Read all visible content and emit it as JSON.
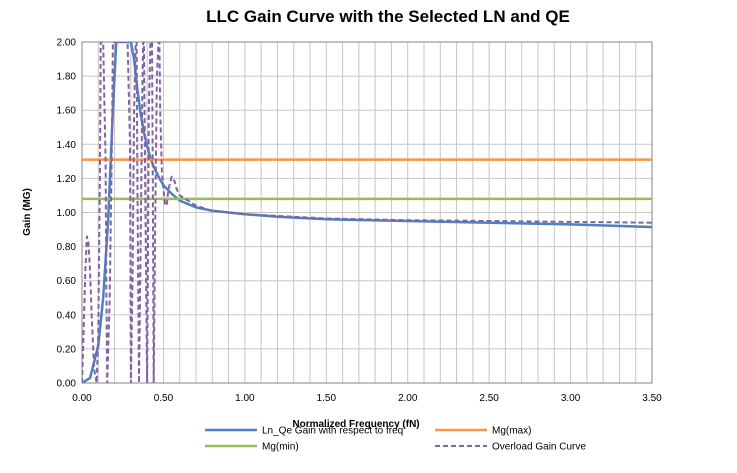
{
  "chart_data": {
    "type": "line",
    "title": "LLC Gain Curve with the Selected LN and QE",
    "xlabel": "Normalized Frequency (fN)",
    "ylabel": "Gain (MG)",
    "xlim": [
      0,
      3.5
    ],
    "ylim": [
      0,
      2
    ],
    "grid": true,
    "legend_position": "bottom",
    "x_ticks": [
      "0.00",
      "0.50",
      "1.00",
      "1.50",
      "2.00",
      "2.50",
      "3.00",
      "3.50"
    ],
    "y_ticks": [
      "0.00",
      "0.20",
      "0.40",
      "0.60",
      "0.80",
      "1.00",
      "1.20",
      "1.40",
      "1.60",
      "1.80",
      "2.00"
    ],
    "series": [
      {
        "name": "Ln_Qe Gain with respect to freq",
        "color": "#4f81bd",
        "style": "solid",
        "x": [
          0.0,
          0.05,
          0.1,
          0.13,
          0.16,
          0.19,
          0.21,
          0.22,
          0.25,
          0.29,
          0.3,
          0.32,
          0.34,
          0.36,
          0.38,
          0.4,
          0.42,
          0.44,
          0.47,
          0.5,
          0.55,
          0.6,
          0.7,
          0.8,
          1.0,
          1.2,
          1.5,
          2.0,
          2.5,
          3.0,
          3.5
        ],
        "y": [
          0.0,
          0.03,
          0.22,
          0.5,
          0.95,
          1.6,
          2.0,
          2.0,
          2.0,
          2.0,
          2.0,
          1.9,
          1.72,
          1.58,
          1.47,
          1.39,
          1.32,
          1.27,
          1.21,
          1.16,
          1.11,
          1.07,
          1.03,
          1.01,
          0.99,
          0.975,
          0.96,
          0.95,
          0.94,
          0.93,
          0.915
        ]
      },
      {
        "name": "Mg(max)",
        "color": "#f79646",
        "style": "solid",
        "x": [
          0,
          3.5
        ],
        "y": [
          1.31,
          1.31
        ]
      },
      {
        "name": "Mg(min)",
        "color": "#9bbb59",
        "style": "solid",
        "x": [
          0,
          3.5
        ],
        "y": [
          1.08,
          1.08
        ]
      },
      {
        "name": "Overload Gain Curve",
        "color": "#8064a2",
        "style": "dashed",
        "x": [
          0.0,
          0.01,
          0.02,
          0.03,
          0.04,
          0.05,
          0.06,
          0.075,
          0.09,
          0.1,
          0.11,
          0.115,
          0.13,
          0.145,
          0.15,
          0.155,
          0.17,
          0.185,
          0.19,
          0.2,
          0.23,
          0.28,
          0.295,
          0.3,
          0.31,
          0.32,
          0.33,
          0.335,
          0.34,
          0.35,
          0.36,
          0.37,
          0.375,
          0.38,
          0.39,
          0.4,
          0.405,
          0.41,
          0.42,
          0.43,
          0.435,
          0.44,
          0.45,
          0.46,
          0.47,
          0.475,
          0.48,
          0.49,
          0.5,
          0.51,
          0.52,
          0.53,
          0.55,
          0.57,
          0.58,
          0.6,
          0.65,
          0.7,
          0.8,
          1.0,
          1.5,
          2.0,
          2.5,
          3.0,
          3.5
        ],
        "y": [
          0.0,
          0.3,
          0.65,
          0.86,
          0.82,
          0.65,
          0.38,
          0.08,
          0.0,
          0.3,
          1.2,
          2.0,
          2.0,
          1.3,
          0.5,
          0.0,
          0.5,
          1.5,
          2.0,
          2.0,
          2.0,
          2.0,
          1.4,
          0.0,
          0.6,
          1.6,
          2.0,
          2.0,
          1.2,
          0.0,
          0.8,
          1.7,
          2.0,
          2.0,
          1.0,
          0.0,
          0.8,
          1.6,
          2.0,
          2.0,
          1.2,
          0.0,
          1.0,
          1.8,
          2.0,
          2.0,
          1.6,
          1.25,
          1.14,
          1.05,
          1.04,
          1.13,
          1.21,
          1.18,
          1.14,
          1.1,
          1.07,
          1.04,
          1.01,
          0.99,
          0.965,
          0.955,
          0.95,
          0.945,
          0.94
        ]
      }
    ]
  }
}
